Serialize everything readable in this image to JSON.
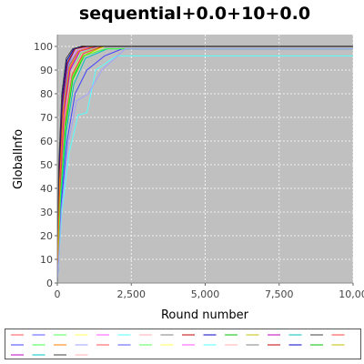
{
  "chart_data": {
    "type": "line",
    "title": "sequential+0.0+10+0.0",
    "xlabel": "Round number",
    "ylabel": "GlobalInfo",
    "xlim": [
      0,
      10000
    ],
    "ylim": [
      0,
      105
    ],
    "x_ticks": [
      "0",
      "2,500",
      "5,000",
      "7,500",
      "10,00"
    ],
    "y_ticks": [
      "0",
      "10",
      "20",
      "30",
      "40",
      "50",
      "60",
      "70",
      "80",
      "90",
      "100"
    ],
    "grid": true,
    "plot_background": "#c0c0c0",
    "legend_placement": "bottom",
    "series": [
      {
        "color": "#ff5555",
        "values": [
          [
            0,
            0
          ],
          [
            80,
            40
          ],
          [
            200,
            70
          ],
          [
            400,
            90
          ],
          [
            700,
            98
          ],
          [
            1300,
            100
          ],
          [
            10000,
            100
          ]
        ]
      },
      {
        "color": "#5555ff",
        "values": [
          [
            0,
            0
          ],
          [
            60,
            45
          ],
          [
            180,
            75
          ],
          [
            350,
            92
          ],
          [
            600,
            99
          ],
          [
            900,
            100
          ],
          [
            10000,
            100
          ]
        ]
      },
      {
        "color": "#55ff55",
        "values": [
          [
            0,
            0
          ],
          [
            90,
            38
          ],
          [
            230,
            68
          ],
          [
            450,
            88
          ],
          [
            800,
            97
          ],
          [
            1400,
            100
          ],
          [
            10000,
            100
          ]
        ]
      },
      {
        "color": "#ffff55",
        "values": [
          [
            0,
            0
          ],
          [
            100,
            35
          ],
          [
            260,
            65
          ],
          [
            500,
            85
          ],
          [
            900,
            96
          ],
          [
            1600,
            100
          ],
          [
            10000,
            100
          ]
        ]
      },
      {
        "color": "#ff55ff",
        "values": [
          [
            0,
            0
          ],
          [
            70,
            42
          ],
          [
            190,
            72
          ],
          [
            380,
            91
          ],
          [
            650,
            98
          ],
          [
            1100,
            100
          ],
          [
            10000,
            100
          ]
        ]
      },
      {
        "color": "#55ffff",
        "values": [
          [
            0,
            0
          ],
          [
            150,
            30
          ],
          [
            400,
            55
          ],
          [
            700,
            71
          ],
          [
            1000,
            72
          ],
          [
            1300,
            90
          ],
          [
            2000,
            96
          ],
          [
            10000,
            96
          ]
        ]
      },
      {
        "color": "#ffafaf",
        "values": [
          [
            0,
            0
          ],
          [
            90,
            40
          ],
          [
            240,
            70
          ],
          [
            480,
            89
          ],
          [
            850,
            97
          ],
          [
            1450,
            100
          ],
          [
            10000,
            100
          ]
        ]
      },
      {
        "color": "#808080",
        "values": [
          [
            0,
            0
          ],
          [
            75,
            44
          ],
          [
            200,
            74
          ],
          [
            400,
            92
          ],
          [
            700,
            98
          ],
          [
            1200,
            100
          ],
          [
            10000,
            100
          ]
        ]
      },
      {
        "color": "#c00000",
        "values": [
          [
            0,
            0
          ],
          [
            65,
            46
          ],
          [
            170,
            76
          ],
          [
            340,
            93
          ],
          [
            600,
            99
          ],
          [
            1000,
            100
          ],
          [
            10000,
            100
          ]
        ]
      },
      {
        "color": "#0000c0",
        "values": [
          [
            0,
            0
          ],
          [
            55,
            48
          ],
          [
            160,
            78
          ],
          [
            320,
            94
          ],
          [
            560,
            99
          ],
          [
            850,
            100
          ],
          [
            10000,
            100
          ]
        ]
      },
      {
        "color": "#00c000",
        "values": [
          [
            0,
            0
          ],
          [
            110,
            36
          ],
          [
            280,
            66
          ],
          [
            520,
            86
          ],
          [
            900,
            96
          ],
          [
            1500,
            100
          ],
          [
            10000,
            100
          ]
        ]
      },
      {
        "color": "#c0c000",
        "values": [
          [
            0,
            0
          ],
          [
            95,
            37
          ],
          [
            250,
            67
          ],
          [
            490,
            87
          ],
          [
            870,
            96
          ],
          [
            1550,
            100
          ],
          [
            10000,
            100
          ]
        ]
      },
      {
        "color": "#c000c0",
        "values": [
          [
            0,
            0
          ],
          [
            85,
            41
          ],
          [
            220,
            71
          ],
          [
            430,
            90
          ],
          [
            760,
            98
          ],
          [
            1350,
            100
          ],
          [
            10000,
            100
          ]
        ]
      },
      {
        "color": "#00c0c0",
        "values": [
          [
            0,
            0
          ],
          [
            120,
            34
          ],
          [
            300,
            64
          ],
          [
            560,
            84
          ],
          [
            950,
            95
          ],
          [
            1700,
            99
          ],
          [
            10000,
            99
          ]
        ]
      },
      {
        "color": "#404040",
        "values": [
          [
            0,
            0
          ],
          [
            50,
            50
          ],
          [
            150,
            80
          ],
          [
            300,
            95
          ],
          [
            520,
            99
          ],
          [
            800,
            100
          ],
          [
            10000,
            100
          ]
        ]
      },
      {
        "color": "#ff4040",
        "values": [
          [
            0,
            0
          ],
          [
            100,
            39
          ],
          [
            260,
            69
          ],
          [
            500,
            88
          ],
          [
            880,
            97
          ],
          [
            1500,
            100
          ],
          [
            10000,
            100
          ]
        ]
      },
      {
        "color": "#4040ff",
        "values": [
          [
            0,
            0
          ],
          [
            130,
            33
          ],
          [
            330,
            60
          ],
          [
            600,
            80
          ],
          [
            1000,
            90
          ],
          [
            1600,
            96
          ],
          [
            2200,
            99
          ],
          [
            10000,
            99
          ]
        ]
      },
      {
        "color": "#40ff40",
        "values": [
          [
            0,
            0
          ],
          [
            105,
            37
          ],
          [
            270,
            67
          ],
          [
            510,
            87
          ],
          [
            890,
            96
          ],
          [
            1650,
            99
          ],
          [
            10000,
            99
          ]
        ]
      },
      {
        "color": "#ff7f00",
        "values": [
          [
            0,
            0
          ],
          [
            80,
            43
          ],
          [
            210,
            73
          ],
          [
            410,
            91
          ],
          [
            720,
            98
          ],
          [
            1250,
            100
          ],
          [
            10000,
            100
          ]
        ]
      },
      {
        "color": "#a0a0ff",
        "values": [
          [
            0,
            0
          ],
          [
            140,
            31
          ],
          [
            360,
            58
          ],
          [
            650,
            77
          ],
          [
            1050,
            80
          ],
          [
            1500,
            90
          ],
          [
            2300,
            99
          ],
          [
            10000,
            99
          ]
        ]
      }
    ],
    "legend_colors": [
      "#ff5555",
      "#5555ff",
      "#55ff55",
      "#ffff55",
      "#ff55ff",
      "#55ffff",
      "#ffafaf",
      "#808080",
      "#c00000",
      "#0000c0",
      "#00c000",
      "#c0c000",
      "#c000c0",
      "#00c0c0",
      "#404040",
      "#ff4040",
      "#4040ff",
      "#40ff40",
      "#ff7f00",
      "#a0a0ff",
      "#ff5555",
      "#5555ff",
      "#55ff55",
      "#ffff55",
      "#ff55ff",
      "#55ffff",
      "#ffafaf",
      "#808080",
      "#c00000",
      "#0000c0",
      "#00c000",
      "#c0c000",
      "#c000c0",
      "#00c0c0",
      "#404040",
      "#ffafaf"
    ]
  }
}
